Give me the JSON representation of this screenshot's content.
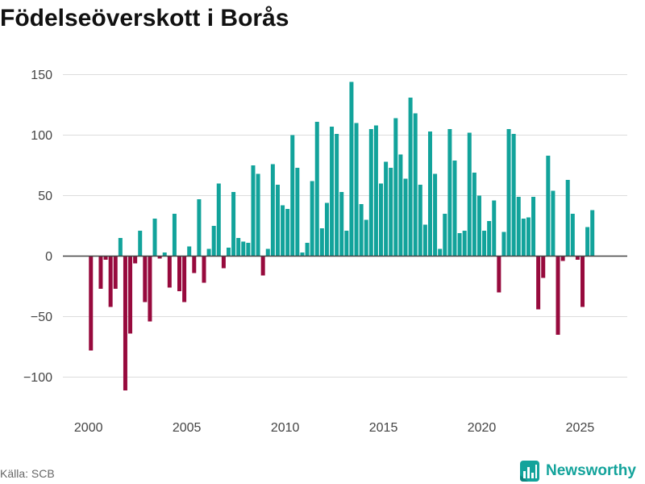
{
  "source": "Källa: SCB",
  "brand": {
    "name": "Newsworthy",
    "icon": "newsworthy-logo-icon"
  },
  "colors": {
    "positive": "#12a39b",
    "negative": "#970a3d",
    "brand": "#13a39b",
    "grid": "#dcdcdc",
    "zero_line": "#444444"
  },
  "chart_data": {
    "type": "bar",
    "title": "Födelseöverskott i Borås",
    "grid": "horizontal",
    "legend": "none",
    "xlim": [
      1998.7,
      2027.4
    ],
    "ylim": [
      -125,
      175
    ],
    "x_ticks": [
      2000,
      2005,
      2010,
      2015,
      2020,
      2025
    ],
    "y_ticks": [
      150,
      100,
      50,
      0,
      -50,
      -100
    ],
    "y_tick_labels": [
      "150",
      "100",
      "50",
      "0",
      "−50",
      "−100"
    ],
    "x": [
      "2000-Q1",
      "2000-Q2",
      "2000-Q3",
      "2000-Q4",
      "2001-Q1",
      "2001-Q2",
      "2001-Q3",
      "2001-Q4",
      "2002-Q1",
      "2002-Q2",
      "2002-Q3",
      "2002-Q4",
      "2003-Q1",
      "2003-Q2",
      "2003-Q3",
      "2003-Q4",
      "2004-Q1",
      "2004-Q2",
      "2004-Q3",
      "2004-Q4",
      "2005-Q1",
      "2005-Q2",
      "2005-Q3",
      "2005-Q4",
      "2006-Q1",
      "2006-Q2",
      "2006-Q3",
      "2006-Q4",
      "2007-Q1",
      "2007-Q2",
      "2007-Q3",
      "2007-Q4",
      "2008-Q1",
      "2008-Q2",
      "2008-Q3",
      "2008-Q4",
      "2009-Q1",
      "2009-Q2",
      "2009-Q3",
      "2009-Q4",
      "2010-Q1",
      "2010-Q2",
      "2010-Q3",
      "2010-Q4",
      "2011-Q1",
      "2011-Q2",
      "2011-Q3",
      "2011-Q4",
      "2012-Q1",
      "2012-Q2",
      "2012-Q3",
      "2012-Q4",
      "2013-Q1",
      "2013-Q2",
      "2013-Q3",
      "2013-Q4",
      "2014-Q1",
      "2014-Q2",
      "2014-Q3",
      "2014-Q4",
      "2015-Q1",
      "2015-Q2",
      "2015-Q3",
      "2015-Q4",
      "2016-Q1",
      "2016-Q2",
      "2016-Q3",
      "2016-Q4",
      "2017-Q1",
      "2017-Q2",
      "2017-Q3",
      "2017-Q4",
      "2018-Q1",
      "2018-Q2",
      "2018-Q3",
      "2018-Q4",
      "2019-Q1",
      "2019-Q2",
      "2019-Q3",
      "2019-Q4",
      "2020-Q1",
      "2020-Q2",
      "2020-Q3",
      "2020-Q4",
      "2021-Q1",
      "2021-Q2",
      "2021-Q3",
      "2021-Q4",
      "2022-Q1",
      "2022-Q2",
      "2022-Q3",
      "2022-Q4",
      "2023-Q1",
      "2023-Q2",
      "2023-Q3",
      "2023-Q4",
      "2024-Q1",
      "2024-Q2",
      "2024-Q3",
      "2024-Q4",
      "2025-Q1",
      "2025-Q2",
      "2025-Q3"
    ],
    "values": [
      -78,
      0,
      -27,
      -3,
      -42,
      -27,
      15,
      -111,
      -64,
      -6,
      21,
      -38,
      -54,
      31,
      -2,
      3,
      -26,
      35,
      -29,
      -38,
      8,
      -14,
      47,
      -22,
      6,
      25,
      60,
      -10,
      7,
      53,
      15,
      12,
      11,
      75,
      68,
      -16,
      6,
      76,
      59,
      42,
      39,
      100,
      73,
      3,
      11,
      62,
      111,
      23,
      44,
      107,
      101,
      53,
      21,
      144,
      110,
      43,
      30,
      105,
      108,
      60,
      78,
      73,
      114,
      84,
      64,
      131,
      118,
      59,
      26,
      103,
      68,
      6,
      35,
      105,
      79,
      19,
      21,
      102,
      69,
      50,
      21,
      29,
      46,
      -30,
      20,
      105,
      101,
      49,
      31,
      32,
      49,
      -44,
      -18,
      83,
      54,
      -65,
      -4,
      63,
      35,
      -3,
      -42,
      24,
      38
    ]
  }
}
